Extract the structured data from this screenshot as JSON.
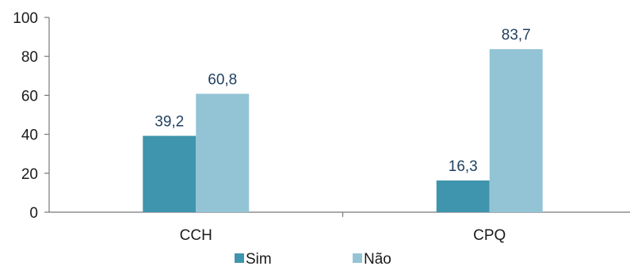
{
  "chart_data": {
    "type": "bar",
    "categories": [
      "CCH",
      "CPQ"
    ],
    "series": [
      {
        "name": "Sim",
        "values": [
          39.2,
          16.3
        ],
        "labels": [
          "39,2",
          "16,3"
        ],
        "color": "#3f95ad"
      },
      {
        "name": "Não",
        "values": [
          60.8,
          83.7
        ],
        "labels": [
          "60,8",
          "83,7"
        ],
        "color": "#93c4d6"
      }
    ],
    "ylim": [
      0,
      100
    ],
    "yticks": [
      "0",
      "20",
      "40",
      "60",
      "80",
      "100"
    ],
    "title": "",
    "xlabel": "",
    "ylabel": "",
    "grid": false,
    "legend": "bottom"
  }
}
